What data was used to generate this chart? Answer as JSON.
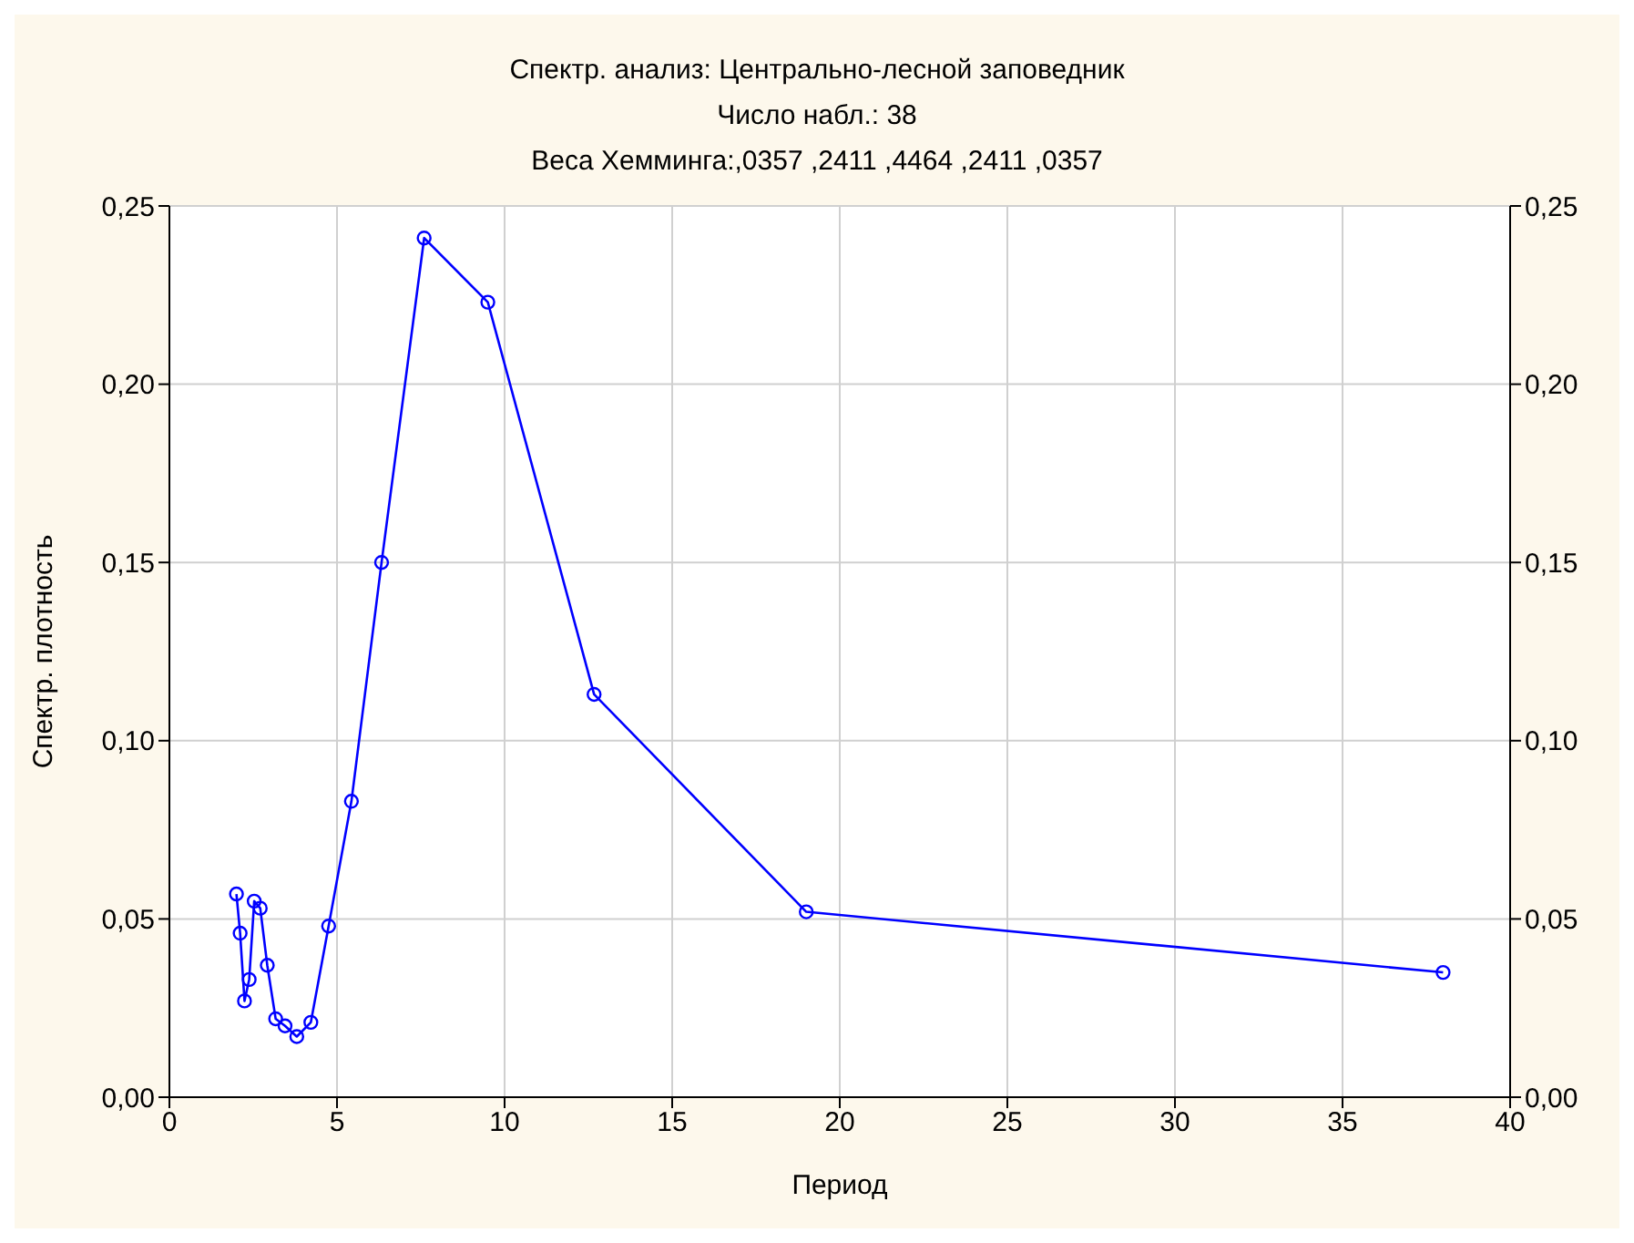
{
  "chart_data": {
    "type": "line",
    "title": "Спектр. анализ: Центрально-лесной заповедник",
    "subtitle": "Число набл.: 38\nВеса Хемминга:,0357 ,2411 ,4464 ,2411 ,0357",
    "xlabel": "Период",
    "ylabel": "Спектр. плотность",
    "x": [
      38,
      19,
      12.67,
      9.5,
      7.6,
      6.33,
      5.43,
      4.75,
      4.22,
      3.8,
      3.45,
      3.17,
      2.92,
      2.71,
      2.53,
      2.38,
      2.24,
      2.11,
      2.0
    ],
    "series": [
      {
        "color": "#0000ff",
        "values": [
          0.035,
          0.052,
          0.113,
          0.223,
          0.241,
          0.15,
          0.083,
          0.048,
          0.021,
          0.017,
          0.02,
          0.022,
          0.037,
          0.053,
          0.055,
          0.033,
          0.027,
          0.046,
          0.057
        ]
      }
    ],
    "xlim": [
      0,
      40
    ],
    "xticks": [
      0,
      5,
      10,
      15,
      20,
      25,
      30,
      35,
      40
    ],
    "ylim": [
      0,
      0.25
    ],
    "yticks": [
      {
        "value": 0,
        "label": "0,00"
      },
      {
        "value": 0.05,
        "label": "0,05"
      },
      {
        "value": 0.1,
        "label": "0,10"
      },
      {
        "value": 0.15,
        "label": "0,15"
      },
      {
        "value": 0.2,
        "label": "0,20"
      },
      {
        "value": 0.25,
        "label": "0,25"
      }
    ],
    "y2lim": [
      0,
      0.25
    ],
    "y2ticks": [
      {
        "value": 0,
        "label": "0,00"
      },
      {
        "value": 0.05,
        "label": "0,05"
      },
      {
        "value": 0.1,
        "label": "0,10"
      },
      {
        "value": 0.15,
        "label": "0,15"
      },
      {
        "value": 0.2,
        "label": "0,20"
      },
      {
        "value": 0.25,
        "label": "0,25"
      }
    ],
    "grid": true,
    "marker": "circle",
    "line_style": "solid"
  }
}
